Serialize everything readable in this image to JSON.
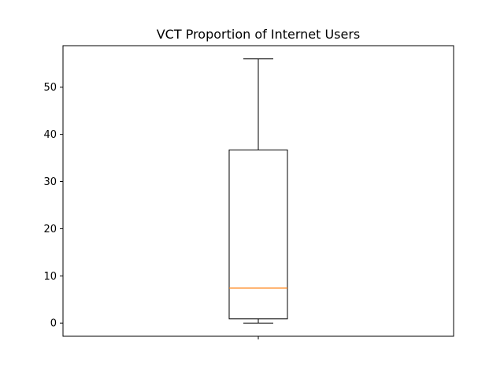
{
  "chart_data": {
    "type": "box",
    "title": "VCT Proportion of Internet Users",
    "xlabel": "",
    "ylabel": "",
    "categories": [
      ""
    ],
    "ylim": [
      -2.8,
      58.8
    ],
    "yticks": [
      0,
      10,
      20,
      30,
      40,
      50
    ],
    "ytick_labels": [
      "0",
      "10",
      "20",
      "30",
      "40",
      "50"
    ],
    "grid": false,
    "boxes": [
      {
        "whisker_low": 0.0,
        "q1": 0.9,
        "median": 7.4,
        "q3": 36.7,
        "whisker_high": 56.0
      }
    ],
    "colors": {
      "box": "#000000",
      "median": "#ff7f0e",
      "axes": "#000000"
    }
  }
}
